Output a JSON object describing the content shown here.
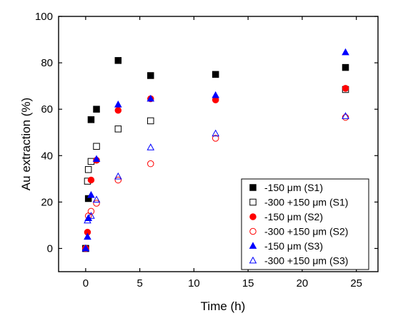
{
  "chart_data": {
    "type": "scatter",
    "title": "",
    "xlabel": "Time (h)",
    "ylabel": "Au extraction (%)",
    "xlim": [
      -2.5,
      27
    ],
    "ylim": [
      -10,
      100
    ],
    "xticks": [
      0,
      5,
      10,
      15,
      20,
      25
    ],
    "yticks": [
      0,
      20,
      40,
      60,
      80,
      100
    ],
    "grid": false,
    "legend_position": "bottom-right",
    "series": [
      {
        "name": "-150 μm (S1)",
        "marker": "square",
        "filled": true,
        "color": "#000000",
        "x": [
          0,
          0.25,
          0.5,
          1,
          3,
          6,
          12,
          24
        ],
        "y": [
          0,
          21.5,
          55.5,
          60,
          81,
          74.5,
          75,
          78
        ]
      },
      {
        "name": "-300 +150 μm (S1)",
        "marker": "square",
        "filled": false,
        "color": "#000000",
        "x": [
          0,
          0.17,
          0.25,
          0.5,
          1,
          3,
          6,
          24
        ],
        "y": [
          0,
          29,
          34,
          37.5,
          44,
          51.5,
          55,
          68.5
        ]
      },
      {
        "name": "-150 μm (S2)",
        "marker": "circle",
        "filled": true,
        "color": "#ff0000",
        "x": [
          0,
          0.17,
          0.5,
          1,
          3,
          6,
          12,
          24
        ],
        "y": [
          0,
          7,
          29.5,
          38,
          59.5,
          64.5,
          64,
          69
        ]
      },
      {
        "name": "-300 +150 μm (S2)",
        "marker": "circle",
        "filled": false,
        "color": "#ff0000",
        "x": [
          0,
          0.25,
          0.5,
          1,
          3,
          6,
          12,
          24
        ],
        "y": [
          0,
          14,
          16,
          19.5,
          29.5,
          36.5,
          47.5,
          56.5
        ]
      },
      {
        "name": "-150 μm (S3)",
        "marker": "triangle",
        "filled": true,
        "color": "#0000ff",
        "x": [
          0,
          0.17,
          0.25,
          0.5,
          1,
          3,
          6,
          12,
          24
        ],
        "y": [
          0,
          5,
          13,
          23,
          38.5,
          62,
          64.5,
          66,
          84.5
        ]
      },
      {
        "name": "-300 +150 μm (S3)",
        "marker": "triangle",
        "filled": false,
        "color": "#0000ff",
        "x": [
          0,
          0.17,
          0.25,
          0.5,
          1,
          3,
          6,
          12,
          24
        ],
        "y": [
          0,
          12,
          13,
          14,
          21,
          31,
          43.5,
          49.5,
          57
        ]
      }
    ]
  }
}
